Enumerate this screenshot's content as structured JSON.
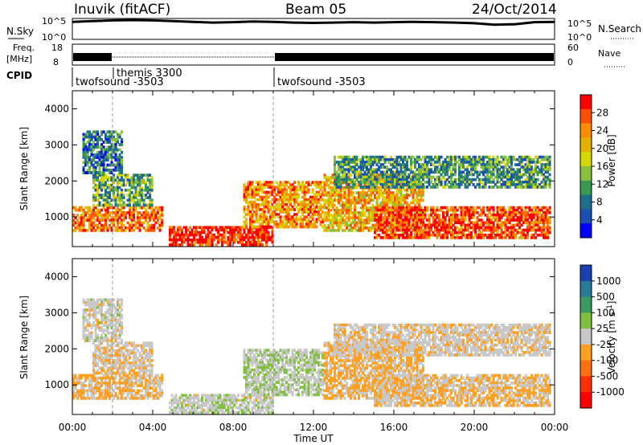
{
  "header": {
    "radar": "Inuvik (fitACF)",
    "beam": "Beam 05",
    "date": "24/Oct/2014"
  },
  "noise_panel": {
    "left_label": "N.Sky",
    "right_label": "N.Search",
    "ticks_left": [
      "10^5",
      "10^0"
    ],
    "ticks_right": [
      "10^5",
      "10^0"
    ]
  },
  "freq_panel": {
    "left_label": "Freq.",
    "left_unit": "[MHz]",
    "right_label": "Nave",
    "ticks_left": [
      "18",
      "8"
    ],
    "ticks_right": [
      "60",
      "0"
    ]
  },
  "cpid_panel": {
    "label": "CPID",
    "segments": [
      {
        "name": "twofsound -3503",
        "start_hour": 0,
        "end_hour": 2
      },
      {
        "name": "themis 3300",
        "start_hour": 2,
        "end_hour": 10
      },
      {
        "name": "twofsound -3503",
        "start_hour": 10,
        "end_hour": 24
      }
    ]
  },
  "x_axis": {
    "label": "Time UT",
    "ticks": [
      "00:00",
      "04:00",
      "08:00",
      "12:00",
      "16:00",
      "20:00",
      "00:00"
    ]
  },
  "power_panel": {
    "ylabel": "Slant Range [km]",
    "colorbar_label": "Power [dB]",
    "colorbar_ticks": [
      "28",
      "24",
      "20",
      "16",
      "12",
      "8",
      "4"
    ],
    "colorbar_colors": [
      "#ff0000",
      "#ff5000",
      "#ff8c00",
      "#e6b000",
      "#d8d800",
      "#8ac040",
      "#3a9a50",
      "#1e6e8c",
      "#1a50b0",
      "#0000ff"
    ]
  },
  "velocity_panel": {
    "ylabel": "Slant Range [km]",
    "colorbar_label": "Velocity [m s",
    "colorbar_label_sup": "-1",
    "colorbar_label_end": "]",
    "colorbar_ticks": [
      "1000",
      "500",
      "100",
      "25",
      "-25",
      "-100",
      "-500",
      "-1000"
    ],
    "colorbar_colors": [
      "#1a40b0",
      "#2a7a9a",
      "#3a9a60",
      "#80c040",
      "#c8c8c8",
      "#ffa020",
      "#ff7010",
      "#ff3000",
      "#ff0000"
    ]
  },
  "chart_data": {
    "type": "heatmap",
    "x_range_hours": [
      0,
      24
    ],
    "x_tick_hours": [
      0,
      4,
      8,
      12,
      16,
      20,
      24
    ],
    "y_range_km": [
      180,
      4500
    ],
    "y_ticks_km": [
      1000,
      2000,
      3000,
      4000
    ],
    "power_db_range": [
      0,
      30
    ],
    "velocity_range": [
      -1000,
      1000
    ],
    "mode_changes_hours": [
      2,
      10
    ],
    "regions": [
      {
        "t0": 0.0,
        "t1": 4.5,
        "r0": 600,
        "r1": 1300,
        "power": 24,
        "velocity": -120
      },
      {
        "t0": 1.0,
        "t1": 4.0,
        "r0": 1300,
        "r1": 2200,
        "power": 12,
        "velocity": -60
      },
      {
        "t0": 0.5,
        "t1": 2.5,
        "r0": 2200,
        "r1": 3400,
        "power": 8,
        "velocity": 0
      },
      {
        "t0": 4.8,
        "t1": 10.0,
        "r0": 200,
        "r1": 750,
        "power": 28,
        "velocity": 30
      },
      {
        "t0": 8.5,
        "t1": 12.5,
        "r0": 700,
        "r1": 2000,
        "power": 22,
        "velocity": 80
      },
      {
        "t0": 12.5,
        "t1": 17.5,
        "r0": 600,
        "r1": 2200,
        "power": 20,
        "velocity": -150
      },
      {
        "t0": 15.0,
        "t1": 23.8,
        "r0": 400,
        "r1": 1300,
        "power": 26,
        "velocity": -120
      },
      {
        "t0": 13.0,
        "t1": 23.8,
        "r0": 1800,
        "r1": 2700,
        "power": 10,
        "velocity": -40
      }
    ],
    "noise_sky_series": [
      [
        0,
        5.0
      ],
      [
        1,
        5.2
      ],
      [
        2,
        5.4
      ],
      [
        3,
        5.5
      ],
      [
        4,
        5.4
      ],
      [
        5,
        5.2
      ],
      [
        6,
        5.0
      ],
      [
        7,
        4.8
      ],
      [
        8,
        4.9
      ],
      [
        9,
        5.1
      ],
      [
        10,
        5.0
      ],
      [
        11,
        4.8
      ],
      [
        12,
        4.7
      ],
      [
        13,
        4.8
      ],
      [
        14,
        4.9
      ],
      [
        15,
        4.8
      ],
      [
        16,
        4.9
      ],
      [
        17,
        5.0
      ],
      [
        18,
        4.9
      ],
      [
        19,
        4.8
      ],
      [
        20,
        4.6
      ],
      [
        21,
        4.2
      ],
      [
        22,
        4.3
      ],
      [
        23,
        4.9
      ],
      [
        24,
        5.0
      ]
    ]
  }
}
